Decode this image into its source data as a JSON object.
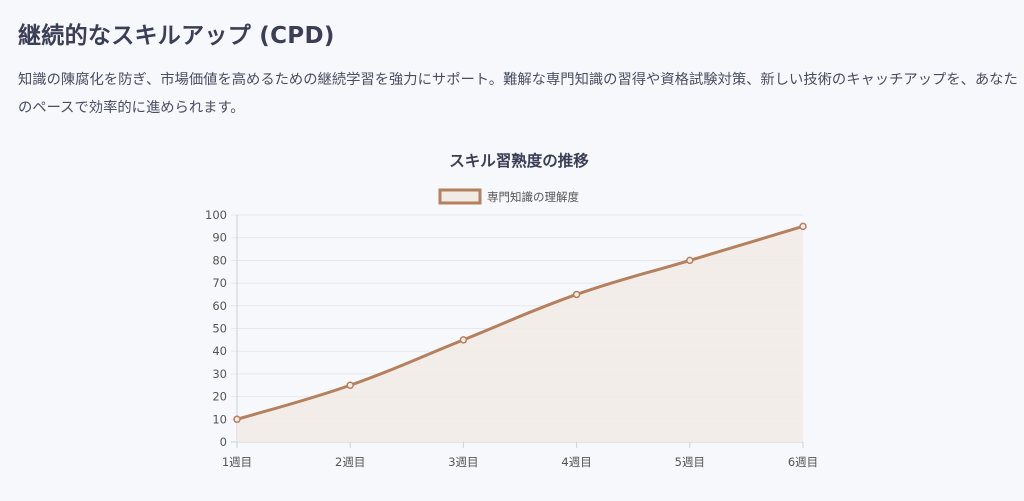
{
  "section": {
    "title": "継続的なスキルアップ (CPD)",
    "description": "知識の陳腐化を防ぎ、市場価値を高めるための継続学習を強力にサポート。難解な専門知識の習得や資格試験対策、新しい技術のキャッチアップを、あなたのペースで効率的に進められます。"
  },
  "chart_data": {
    "type": "line",
    "title": "スキル習熟度の推移",
    "categories": [
      "1週目",
      "2週目",
      "3週目",
      "4週目",
      "5週目",
      "6週目"
    ],
    "series": [
      {
        "name": "専門知識の理解度",
        "values": [
          10,
          25,
          45,
          65,
          80,
          95
        ]
      }
    ],
    "ylim": [
      0,
      100
    ],
    "y_ticks": [
      "0",
      "10",
      "20",
      "30",
      "40",
      "50",
      "60",
      "70",
      "80",
      "90",
      "100"
    ],
    "fill": true,
    "grid": true,
    "legend_position": "top",
    "colors": {
      "line": "#b5805e",
      "fill": "#f1ebe6",
      "grid": "#e6e7ea"
    }
  }
}
